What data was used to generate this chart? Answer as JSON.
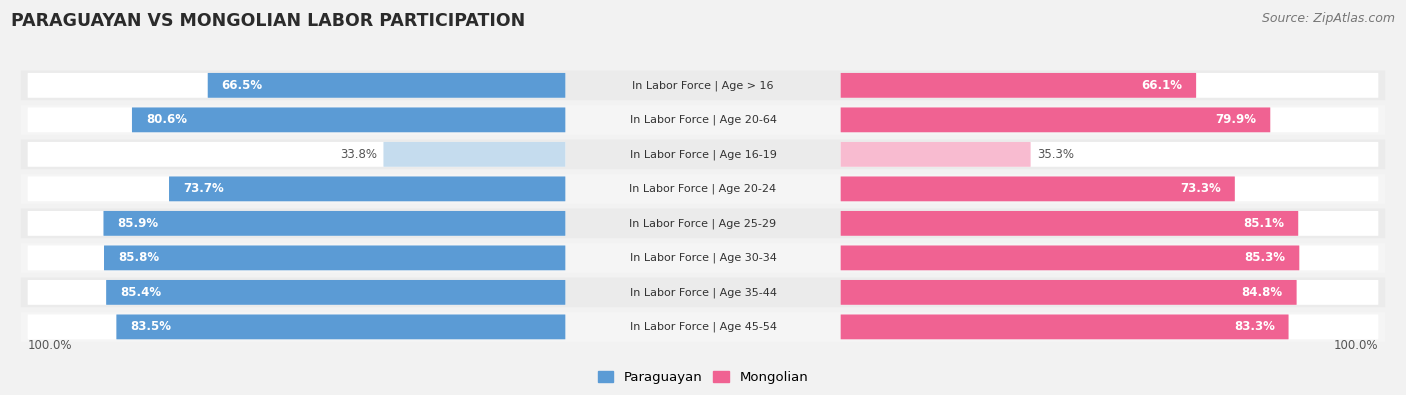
{
  "title": "PARAGUAYAN VS MONGOLIAN LABOR PARTICIPATION",
  "source": "Source: ZipAtlas.com",
  "categories": [
    "In Labor Force | Age > 16",
    "In Labor Force | Age 20-64",
    "In Labor Force | Age 16-19",
    "In Labor Force | Age 20-24",
    "In Labor Force | Age 25-29",
    "In Labor Force | Age 30-34",
    "In Labor Force | Age 35-44",
    "In Labor Force | Age 45-54"
  ],
  "paraguayan": [
    66.5,
    80.6,
    33.8,
    73.7,
    85.9,
    85.8,
    85.4,
    83.5
  ],
  "mongolian": [
    66.1,
    79.9,
    35.3,
    73.3,
    85.1,
    85.3,
    84.8,
    83.3
  ],
  "paraguayan_color": "#5B9BD5",
  "paraguayan_light_color": "#C5DCEE",
  "mongolian_color": "#F06292",
  "mongolian_light_color": "#F8BBD0",
  "row_odd_color": "#EBEBEB",
  "row_even_color": "#F5F5F5",
  "background_color": "#F2F2F2",
  "title_color": "#2B2B2B",
  "source_color": "#777777",
  "x_label": "100.0%"
}
